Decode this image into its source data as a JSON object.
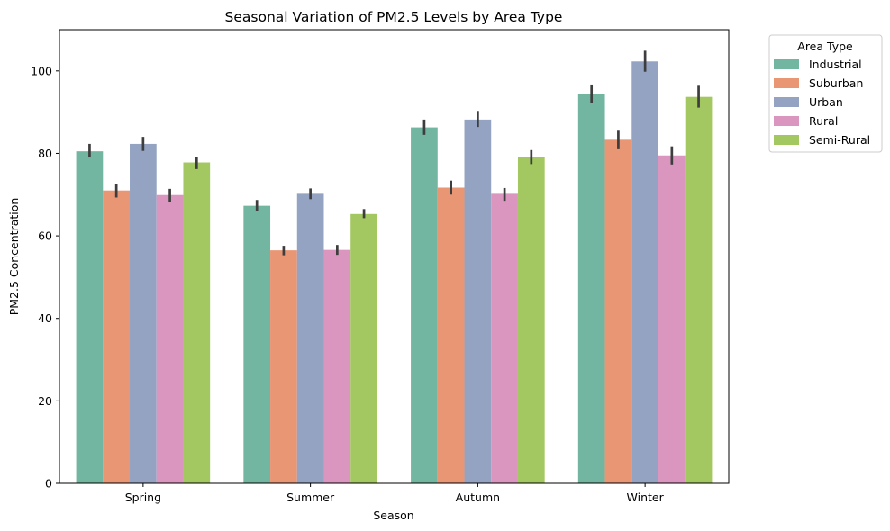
{
  "chart_data": {
    "type": "bar",
    "title": "Seasonal Variation of PM2.5 Levels by Area Type",
    "xlabel": "Season",
    "ylabel": "PM2.5 Concentration",
    "ylim": [
      0,
      110
    ],
    "yticks": [
      0,
      20,
      40,
      60,
      80,
      100
    ],
    "categories": [
      "Spring",
      "Summer",
      "Autumn",
      "Winter"
    ],
    "legend_title": "Area Type",
    "legend_position": "outside-top-right",
    "series": [
      {
        "name": "Industrial",
        "color": "#72b6a1",
        "values": [
          80.5,
          67.3,
          86.3,
          94.5
        ],
        "err_low": [
          79.0,
          66.0,
          84.5,
          92.3
        ],
        "err_high": [
          82.3,
          68.7,
          88.2,
          96.7
        ]
      },
      {
        "name": "Suburban",
        "color": "#e99675",
        "values": [
          71.0,
          56.5,
          71.7,
          83.3
        ],
        "err_low": [
          69.3,
          55.3,
          70.0,
          81.0
        ],
        "err_high": [
          72.5,
          57.6,
          73.4,
          85.5
        ]
      },
      {
        "name": "Urban",
        "color": "#95a3c3",
        "values": [
          82.3,
          70.2,
          88.2,
          102.3
        ],
        "err_low": [
          80.6,
          68.9,
          86.4,
          99.8
        ],
        "err_high": [
          84.0,
          71.5,
          90.3,
          104.9
        ]
      },
      {
        "name": "Rural",
        "color": "#db96c0",
        "values": [
          69.9,
          56.6,
          70.2,
          79.5
        ],
        "err_low": [
          68.3,
          55.4,
          68.5,
          77.3
        ],
        "err_high": [
          71.4,
          57.8,
          71.6,
          81.7
        ]
      },
      {
        "name": "Semi-Rural",
        "color": "#a4c861",
        "values": [
          77.8,
          65.3,
          79.1,
          93.7
        ],
        "err_low": [
          76.2,
          64.3,
          77.4,
          91.1
        ],
        "err_high": [
          79.2,
          66.5,
          80.8,
          96.4
        ]
      }
    ]
  }
}
